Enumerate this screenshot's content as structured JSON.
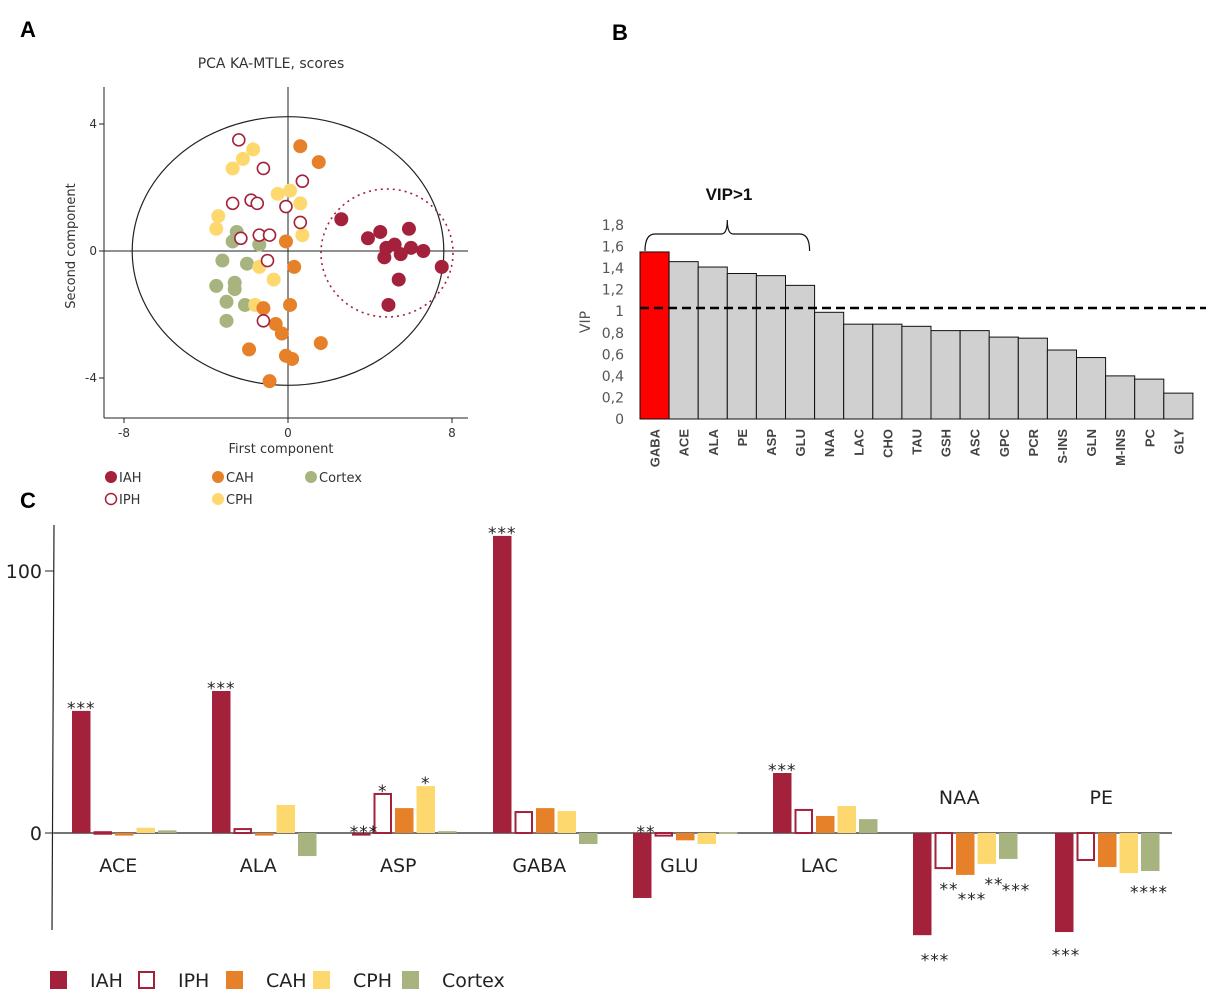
{
  "colors": {
    "IAH": "#a3213b",
    "IPH": "#a3213b",
    "CAH": "#e6812a",
    "CPH": "#fdd86f",
    "Cortex": "#a7b47f",
    "vip_highlight": "#ff0000",
    "vip_bar": "#d0d0d0"
  },
  "chart_data": [
    {
      "panel": "A",
      "type": "scatter",
      "title": "PCA KA-MTLE, scores",
      "xlabel": "First component",
      "ylabel": "Second component",
      "xlim": [
        -8.6,
        8.9
      ],
      "ylim": [
        -5.2,
        5.2
      ],
      "xticks": [
        -8,
        0,
        8
      ],
      "xtick_labels": [
        "-8",
        "0",
        "8"
      ],
      "yticks": [
        -4,
        0,
        4
      ],
      "ytick_labels": [
        "-4",
        "0",
        "4"
      ],
      "grid": false,
      "reference_ellipse": {
        "cx": 0,
        "cy": 0,
        "rx": 7.6,
        "ry": 4.5
      },
      "cluster_ellipse": {
        "group": "IAH",
        "cx": 5.1,
        "cy": 0,
        "rx": 6.4,
        "ry": 2.9,
        "style": "dotted"
      },
      "legend": {
        "placement": "bottom",
        "entries": [
          {
            "label": "IAH",
            "marker": "filled"
          },
          {
            "label": "IPH",
            "marker": "open"
          },
          {
            "label": "CAH",
            "marker": "filled"
          },
          {
            "label": "CPH",
            "marker": "filled"
          },
          {
            "label": "Cortex",
            "marker": "filled"
          }
        ]
      },
      "series": [
        {
          "name": "IAH",
          "points": [
            [
              2.6,
              1.0
            ],
            [
              3.9,
              0.4
            ],
            [
              4.5,
              0.6
            ],
            [
              5.9,
              0.7
            ],
            [
              4.8,
              0.1
            ],
            [
              5.2,
              0.2
            ],
            [
              6.0,
              0.1
            ],
            [
              6.6,
              0.0
            ],
            [
              4.7,
              -0.2
            ],
            [
              5.5,
              -0.1
            ],
            [
              7.5,
              -0.5
            ],
            [
              5.4,
              -0.9
            ],
            [
              4.9,
              -1.7
            ]
          ]
        },
        {
          "name": "IPH",
          "points": [
            [
              -2.4,
              3.5
            ],
            [
              -1.2,
              2.6
            ],
            [
              0.7,
              2.2
            ],
            [
              -2.7,
              1.5
            ],
            [
              -1.8,
              1.6
            ],
            [
              -1.5,
              1.5
            ],
            [
              -0.1,
              1.4
            ],
            [
              0.6,
              0.9
            ],
            [
              -1.4,
              0.5
            ],
            [
              -0.9,
              0.5
            ],
            [
              -2.3,
              0.4
            ],
            [
              -1.0,
              -0.3
            ],
            [
              -1.2,
              -2.2
            ]
          ]
        },
        {
          "name": "CAH",
          "points": [
            [
              0.6,
              3.3
            ],
            [
              1.5,
              2.8
            ],
            [
              -0.1,
              0.3
            ],
            [
              0.3,
              -0.5
            ],
            [
              0.1,
              -1.7
            ],
            [
              -1.2,
              -1.8
            ],
            [
              -0.6,
              -2.3
            ],
            [
              -0.3,
              -2.6
            ],
            [
              1.6,
              -2.9
            ],
            [
              -1.9,
              -3.1
            ],
            [
              -0.1,
              -3.3
            ],
            [
              0.2,
              -3.4
            ],
            [
              -0.9,
              -4.1
            ]
          ]
        },
        {
          "name": "CPH",
          "points": [
            [
              -1.7,
              3.2
            ],
            [
              -2.2,
              2.9
            ],
            [
              -2.7,
              2.6
            ],
            [
              -0.5,
              1.8
            ],
            [
              0.1,
              1.9
            ],
            [
              0.6,
              1.5
            ],
            [
              -3.4,
              1.1
            ],
            [
              -3.5,
              0.7
            ],
            [
              0.7,
              0.5
            ],
            [
              -1.4,
              -0.5
            ],
            [
              -0.7,
              -0.9
            ],
            [
              -1.6,
              -1.7
            ]
          ]
        },
        {
          "name": "Cortex",
          "points": [
            [
              -2.5,
              0.6
            ],
            [
              -2.7,
              0.3
            ],
            [
              -1.4,
              0.2
            ],
            [
              -3.2,
              -0.3
            ],
            [
              -2.0,
              -0.4
            ],
            [
              -2.6,
              -1.0
            ],
            [
              -3.5,
              -1.1
            ],
            [
              -2.6,
              -1.2
            ],
            [
              -3.0,
              -1.6
            ],
            [
              -2.1,
              -1.7
            ],
            [
              -3.0,
              -2.2
            ]
          ]
        }
      ]
    },
    {
      "panel": "B",
      "type": "bar",
      "title": "",
      "xlabel": "",
      "ylabel": "VIP",
      "ylim": [
        0,
        1.8
      ],
      "yticks": [
        0,
        0.2,
        0.4,
        0.6,
        0.8,
        1,
        1.2,
        1.4,
        1.6,
        1.8
      ],
      "ytick_labels": [
        "0",
        "0,2",
        "0,4",
        "0,6",
        "0,8",
        "1",
        "1,2",
        "1,4",
        "1,6",
        "1,8"
      ],
      "categories": [
        "GABA",
        "ACE",
        "ALA",
        "PE",
        "ASP",
        "GLU",
        "NAA",
        "LAC",
        "CHO",
        "TAU",
        "GSH",
        "ASC",
        "GPC",
        "PCR",
        "S-INS",
        "GLN",
        "M-INS",
        "PC",
        "GLY"
      ],
      "values": [
        1.55,
        1.46,
        1.41,
        1.35,
        1.33,
        1.24,
        0.99,
        0.88,
        0.88,
        0.86,
        0.82,
        0.82,
        0.76,
        0.75,
        0.64,
        0.57,
        0.4,
        0.37,
        0.24
      ],
      "highlight": [
        "GABA"
      ],
      "threshold_line": {
        "value": 1.03,
        "style": "dashed"
      },
      "annotation": {
        "text": "VIP>1",
        "spans": [
          "GABA",
          "GLU"
        ],
        "shape": "brace"
      },
      "grid": false
    },
    {
      "panel": "C",
      "type": "bar",
      "title": "",
      "xlabel": "",
      "ylabel": "",
      "ylim": [
        -37,
        120
      ],
      "yticks": [
        0,
        100
      ],
      "ytick_labels": [
        "0",
        "100"
      ],
      "categories": [
        "ACE",
        "ALA",
        "ASP",
        "GABA",
        "GLU",
        "LAC",
        "NAA",
        "PE"
      ],
      "label_position": [
        "below",
        "below",
        "below",
        "below",
        "below",
        "below",
        "above",
        "above"
      ],
      "series": [
        {
          "name": "IAH",
          "style": "filled",
          "values": [
            46.6,
            54.2,
            -1.0,
            113.4,
            -24.8,
            22.9,
            -39.0,
            -37.8
          ]
        },
        {
          "name": "IPH",
          "style": "open",
          "values": [
            0.3,
            1.5,
            14.9,
            8.0,
            -1.0,
            8.8,
            -13.4,
            -10.3
          ]
        },
        {
          "name": "CAH",
          "style": "filled",
          "values": [
            -1.0,
            -1.0,
            9.5,
            9.5,
            -2.8,
            6.5,
            -16.0,
            -13.0
          ]
        },
        {
          "name": "CPH",
          "style": "filled",
          "values": [
            2.0,
            10.7,
            17.9,
            8.4,
            -4.2,
            10.3,
            -11.8,
            -15.3
          ]
        },
        {
          "name": "Cortex",
          "style": "filled",
          "values": [
            1.0,
            -8.8,
            0.7,
            -4.2,
            0.3,
            5.3,
            -9.9,
            -14.5
          ]
        }
      ],
      "significance": [
        {
          "category": "ACE",
          "series": "IAH",
          "text": "***"
        },
        {
          "category": "ALA",
          "series": "IAH",
          "text": "***"
        },
        {
          "category": "ASP",
          "series": "IAH",
          "text": "***"
        },
        {
          "category": "ASP",
          "series": "IPH",
          "text": "*"
        },
        {
          "category": "ASP",
          "series": "CPH",
          "text": "*"
        },
        {
          "category": "GABA",
          "series": "IAH",
          "text": "***"
        },
        {
          "category": "GLU",
          "series": "IAH",
          "text": "**"
        },
        {
          "category": "LAC",
          "series": "IAH",
          "text": "***"
        },
        {
          "category": "NAA",
          "series": "IAH",
          "text": "***"
        },
        {
          "category": "NAA",
          "series": "IPH",
          "text": "**"
        },
        {
          "category": "NAA",
          "series": "CAH",
          "text": "***"
        },
        {
          "category": "NAA",
          "series": "CPH",
          "text": "**"
        },
        {
          "category": "NAA",
          "series": "Cortex",
          "text": "***"
        },
        {
          "category": "PE",
          "series": "IAH",
          "text": "***"
        },
        {
          "category": "PE",
          "series": "Cortex",
          "text": "****"
        }
      ],
      "legend": {
        "placement": "bottom-left",
        "entries": [
          "IAH",
          "IPH",
          "CAH",
          "CPH",
          "Cortex"
        ]
      },
      "grid": false
    }
  ],
  "panels": {
    "A": {
      "letter": "A"
    },
    "B": {
      "letter": "B"
    },
    "C": {
      "letter": "C"
    }
  }
}
